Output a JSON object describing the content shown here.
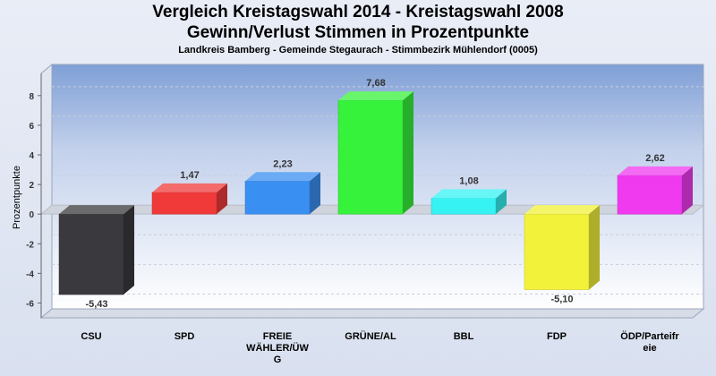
{
  "header": {
    "title_line1": "Vergleich Kreistagswahl 2014 - Kreistagswahl 2008",
    "title_line2": "Gewinn/Verlust Stimmen in Prozentpunkte",
    "subtitle": "Landkreis Bamberg - Gemeinde Stegaurach - Stimmbezirk Mühlendorf (0005)"
  },
  "chart_data": {
    "type": "bar",
    "title": "Vergleich Kreistagswahl 2014 - Kreistagswahl 2008 Gewinn/Verlust Stimmen in Prozentpunkte",
    "subtitle": "Landkreis Bamberg - Gemeinde Stegaurach - Stimmbezirk Mühlendorf (0005)",
    "xlabel": "",
    "ylabel": "Prozentpunkte",
    "ylim": [
      -7,
      9.5
    ],
    "yticks": [
      -6,
      -4,
      -2,
      0,
      2,
      4,
      6,
      8
    ],
    "grid": true,
    "categories": [
      [
        "CSU"
      ],
      [
        "SPD"
      ],
      [
        "FREIE",
        "WÄHLER/ÜW",
        "G"
      ],
      [
        "GRÜNE/AL"
      ],
      [
        "BBL"
      ],
      [
        "FDP"
      ],
      [
        "ÖDP/Parteifr",
        "eie"
      ]
    ],
    "values": [
      -5.43,
      1.47,
      2.23,
      7.68,
      1.08,
      -5.1,
      2.62
    ],
    "value_labels": [
      "-5,43",
      "1,47",
      "2,23",
      "7,68",
      "1,08",
      "-5,10",
      "2,62"
    ],
    "colors": [
      "#3a3a3e",
      "#f03a3a",
      "#3a8ff2",
      "#36f23a",
      "#36f2f2",
      "#f2f23a",
      "#ef3aef"
    ]
  }
}
